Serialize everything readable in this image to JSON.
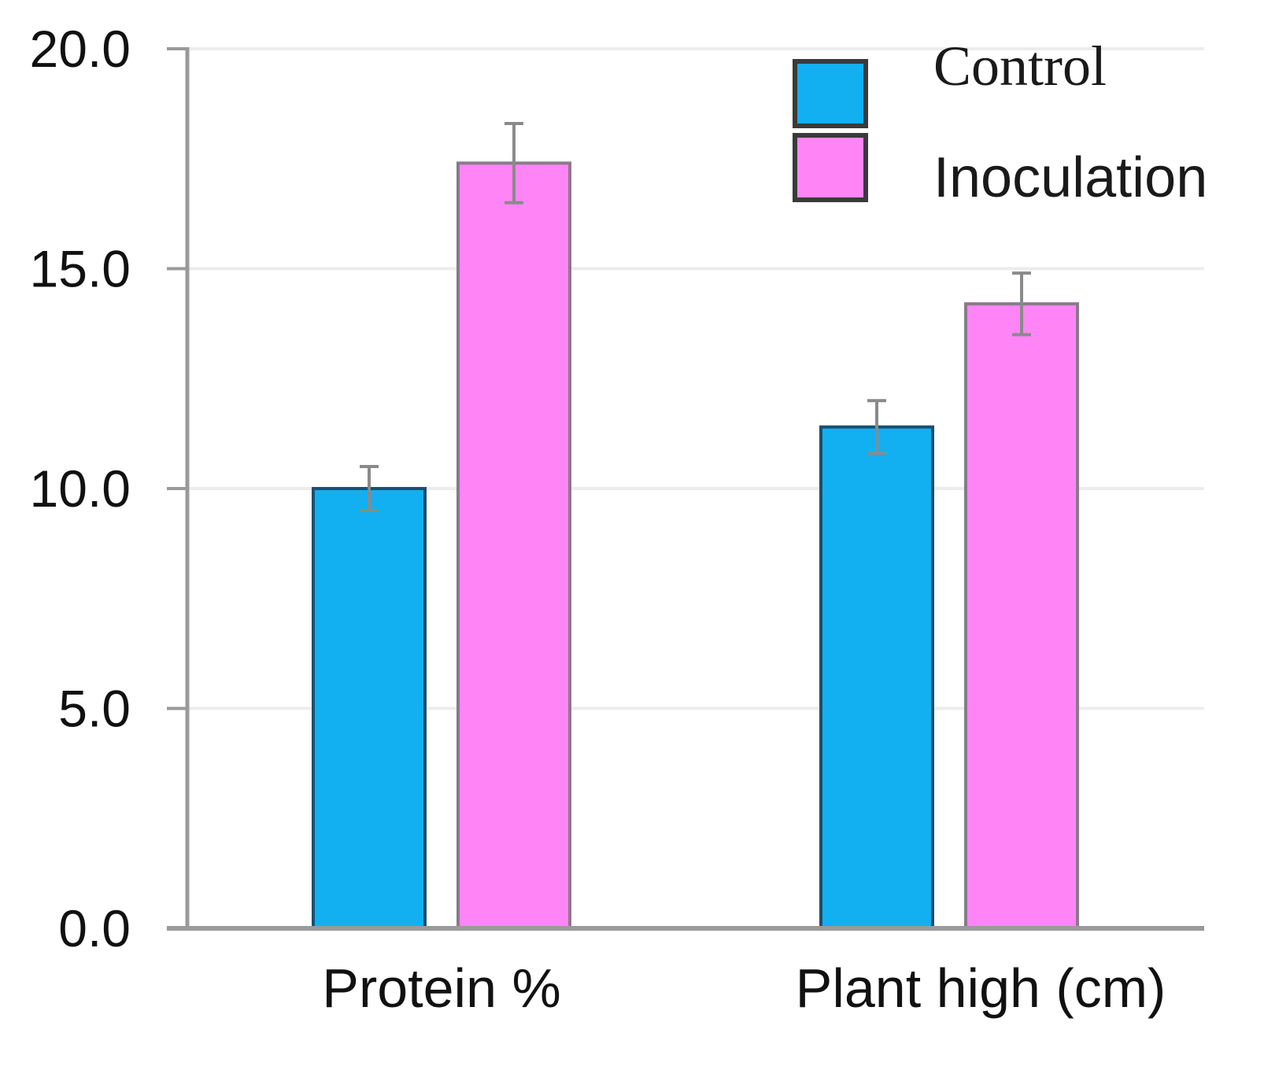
{
  "chart_data": {
    "type": "bar",
    "title": "",
    "xlabel": "",
    "ylabel": "",
    "ylim": [
      0,
      20
    ],
    "yticks": [
      "0.0",
      "5.0",
      "10.0",
      "15.0",
      "20.0"
    ],
    "ytick_values": [
      0,
      5,
      10,
      15,
      20
    ],
    "grid": true,
    "legend_position": "top-right",
    "categories": [
      "Protein %",
      "Plant high (cm)"
    ],
    "series": [
      {
        "name": "Control",
        "color": "#12b0f0",
        "values": [
          10.0,
          11.4
        ],
        "errors": [
          0.5,
          0.6
        ]
      },
      {
        "name": "Inoculation",
        "color": "#ff85f7",
        "values": [
          17.4,
          14.2
        ],
        "errors": [
          0.9,
          0.7
        ]
      }
    ]
  }
}
